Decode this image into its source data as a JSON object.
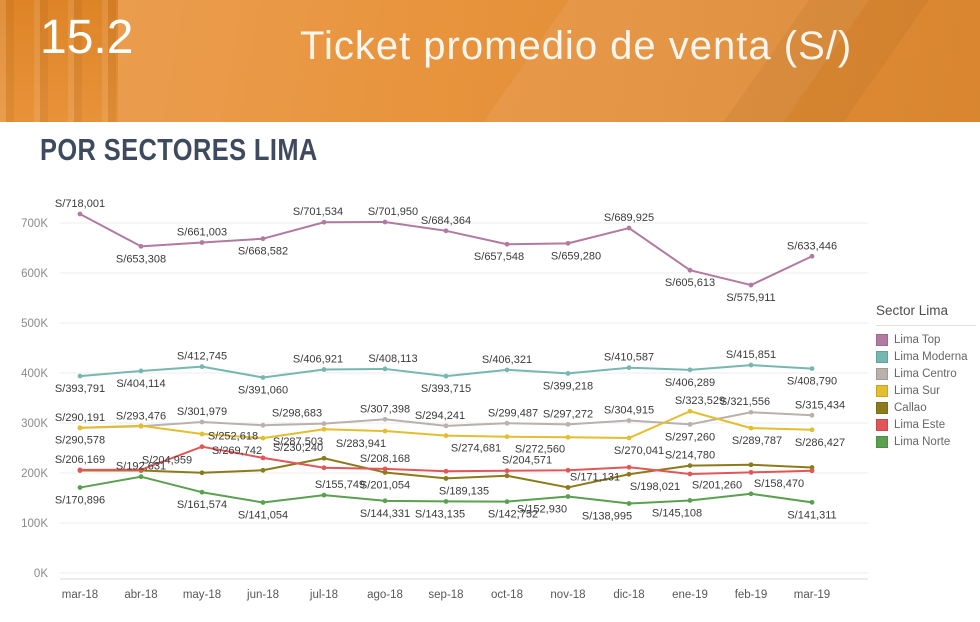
{
  "header": {
    "number": "15.2",
    "title": "Ticket promedio de venta (S/)"
  },
  "section_title": "POR SECTORES LIMA",
  "legend": {
    "title": "Sector Lima"
  },
  "colors": {
    "banner_orange": "#E8923A",
    "section_title_color": "#3E4A5E"
  },
  "chart_data": {
    "type": "line",
    "x": [
      "mar-18",
      "abr-18",
      "may-18",
      "jun-18",
      "jul-18",
      "ago-18",
      "sep-18",
      "oct-18",
      "nov-18",
      "dic-18",
      "ene-19",
      "feb-19",
      "mar-19"
    ],
    "yticks": [
      "0K",
      "100K",
      "200K",
      "300K",
      "400K",
      "500K",
      "600K",
      "700K"
    ],
    "ylim": [
      0,
      750000
    ],
    "grid": true,
    "legend_position": "right",
    "series": [
      {
        "name": "Lima Top",
        "color": "#B07AA1",
        "values": [
          718001,
          653308,
          661003,
          668582,
          701534,
          701950,
          684364,
          657548,
          659280,
          689925,
          605613,
          575911,
          633446
        ],
        "labels": [
          "S/718,001",
          "S/653,308",
          "S/661,003",
          "S/668,582",
          "S/701,534",
          "S/701,950",
          "S/684,364",
          "S/657,548",
          "S/659,280",
          "S/689,925",
          "S/605,613",
          "S/575,911",
          "S/633,446"
        ],
        "label_pos": [
          "a",
          "b",
          "a",
          "b",
          "a",
          "a",
          "a",
          "b",
          "b",
          "a",
          "b",
          "b",
          "a"
        ],
        "label_dx": [
          0,
          0,
          0,
          0,
          -6,
          8,
          0,
          -8,
          8,
          0,
          0,
          0,
          0
        ]
      },
      {
        "name": "Lima Moderna",
        "color": "#76B7B2",
        "values": [
          393791,
          404114,
          412745,
          391060,
          406921,
          408113,
          393715,
          406321,
          399218,
          410587,
          406289,
          415851,
          408790
        ],
        "labels": [
          "S/393,791",
          "S/404,114",
          "S/412,745",
          "S/391,060",
          "S/406,921",
          "S/408,113",
          "S/393,715",
          "S/406,321",
          "S/399,218",
          "S/410,587",
          "S/406,289",
          "S/415,851",
          "S/408,790"
        ],
        "label_pos": [
          "b",
          "b",
          "a",
          "b",
          "a",
          "a",
          "b",
          "a",
          "b",
          "a",
          "b",
          "a",
          "b"
        ],
        "label_dx": [
          0,
          0,
          0,
          0,
          -6,
          8,
          0,
          0,
          0,
          0,
          0,
          0,
          0
        ]
      },
      {
        "name": "Lima Centro",
        "color": "#BAB0AC",
        "values": [
          290191,
          293476,
          301979,
          295500,
          298683,
          307398,
          294241,
          299487,
          297272,
          304915,
          297260,
          321556,
          315434
        ],
        "labels": [
          "S/290,191",
          "S/293,476",
          "S/301,979",
          null,
          "S/298,683",
          "S/307,398",
          "S/294,241",
          "S/299,487",
          "S/297,272",
          "S/304,915",
          "S/297,260",
          "S/321,556",
          "S/315,434"
        ],
        "label_pos": [
          "a",
          "a",
          "a",
          "a",
          "a",
          "a",
          "a",
          "a",
          "a",
          "a",
          "b",
          "a",
          "a"
        ],
        "label_dx": [
          0,
          0,
          0,
          0,
          -27,
          0,
          -6,
          6,
          0,
          0,
          0,
          -6,
          8
        ]
      },
      {
        "name": "Lima Sur",
        "color": "#E3BE2F",
        "values": [
          290578,
          294500,
          278000,
          269742,
          287503,
          283941,
          274681,
          272560,
          271500,
          270041,
          323529,
          289787,
          286427
        ],
        "labels": [
          "S/290,578",
          null,
          null,
          "S/269,742",
          "S/287,503",
          "S/283,941",
          "S/274,681",
          "S/272,560",
          null,
          "S/270,041",
          "S/323,529",
          "S/289,787",
          "S/286,427"
        ],
        "label_pos": [
          "b",
          "b",
          "b",
          "b",
          "b",
          "b",
          "b",
          "b",
          "b",
          "b",
          "a",
          "b",
          "b"
        ],
        "label_dx": [
          0,
          0,
          0,
          -26,
          -26,
          -24,
          30,
          33,
          0,
          10,
          10,
          6,
          8
        ]
      },
      {
        "name": "Callao",
        "color": "#8C7B1B",
        "values": [
          205000,
          204959,
          200500,
          205500,
          229500,
          201054,
          189135,
          194500,
          171131,
          197500,
          214780,
          216500,
          211000
        ],
        "labels": [
          null,
          "S/204,959",
          null,
          null,
          null,
          "S/201,054",
          "S/189,135",
          null,
          "S/171,131",
          null,
          "S/214,780",
          null,
          null
        ],
        "label_pos": [
          "a",
          "a",
          "a",
          "a",
          "a",
          "b",
          "b",
          "b",
          "a",
          "b",
          "a",
          "a",
          "a"
        ],
        "label_dx": [
          0,
          26,
          0,
          0,
          0,
          0,
          18,
          0,
          27,
          0,
          0,
          0,
          0
        ]
      },
      {
        "name": "Lima Este",
        "color": "#E15759",
        "values": [
          206169,
          206500,
          252618,
          230240,
          210500,
          208168,
          203500,
          204571,
          205500,
          211500,
          198021,
          201260,
          204500
        ],
        "labels": [
          "S/206,169",
          null,
          "S/252,618",
          "S/230,240",
          null,
          "S/208,168",
          null,
          "S/204,571",
          null,
          null,
          "S/198,021",
          "S/201,260",
          null
        ],
        "label_pos": [
          "a",
          "a",
          "a",
          "a",
          "a",
          "a",
          "a",
          "a",
          "a",
          "a",
          "b",
          "b",
          "a"
        ],
        "label_dx": [
          0,
          0,
          31,
          35,
          0,
          0,
          0,
          20,
          0,
          0,
          -35,
          -34,
          0
        ]
      },
      {
        "name": "Lima Norte",
        "color": "#59A14F",
        "values": [
          170896,
          192631,
          161574,
          141054,
          155749,
          144331,
          143135,
          142752,
          152930,
          138995,
          145108,
          158470,
          141311
        ],
        "labels": [
          "S/170,896",
          "S/192,631",
          "S/161,574",
          "S/141,054",
          "S/155,749",
          "S/144,331",
          "S/143,135",
          "S/142,752",
          "S/152,930",
          "S/138,995",
          "S/145,108",
          "S/158,470",
          "S/141,311"
        ],
        "label_pos": [
          "b",
          "a",
          "b",
          "b",
          "a",
          "b",
          "b",
          "b",
          "b",
          "b",
          "b",
          "a",
          "b"
        ],
        "label_dx": [
          0,
          0,
          0,
          0,
          16,
          0,
          -6,
          6,
          -26,
          -22,
          -13,
          28,
          0
        ]
      }
    ]
  }
}
